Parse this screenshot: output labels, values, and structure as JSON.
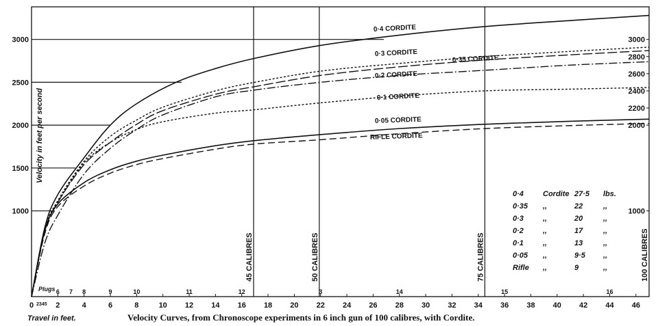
{
  "chart_data": {
    "type": "line",
    "title": "Velocity Curves, from Chronoscope experiments in 6 inch gun of 100 calibres, with Cordite.",
    "xlabel": "Travel in feet.",
    "ylabel": "Velocity in feet per second",
    "xlim": [
      0,
      47
    ],
    "ylim": [
      0,
      3380
    ],
    "x_ticks": [
      0,
      2,
      4,
      6,
      8,
      10,
      12,
      14,
      16,
      18,
      20,
      22,
      24,
      26,
      28,
      30,
      32,
      34,
      36,
      38,
      40,
      42,
      44,
      46
    ],
    "x_tick_labels": [
      "0",
      "2",
      "4",
      "6",
      "8",
      "10",
      "12",
      "14",
      "16",
      "18",
      "20",
      "22",
      "24",
      "26",
      "28",
      "30",
      "32",
      "34",
      "36",
      "38",
      "40",
      "42",
      "44",
      "46"
    ],
    "x_minor_label": "2345",
    "y_ticks_left": [
      1000,
      1500,
      2000,
      2500,
      3000
    ],
    "y_ticks_left_labels": [
      "1000",
      "1500",
      "2000",
      "2500",
      "3000"
    ],
    "y_ticks_right": [
      1000,
      2000,
      2200,
      2400,
      2600,
      2800,
      3000
    ],
    "y_ticks_right_labels": [
      "1000",
      "2000",
      "2200",
      "2400",
      "2600",
      "2800",
      "3000"
    ],
    "plugs_label": "Plugs",
    "plug_marks": [
      {
        "label": "6",
        "x": 2
      },
      {
        "label": "7",
        "x": 3
      },
      {
        "label": "8",
        "x": 4
      },
      {
        "label": "9",
        "x": 6
      },
      {
        "label": "10",
        "x": 8
      },
      {
        "label": "11",
        "x": 12
      },
      {
        "label": "12",
        "x": 16
      },
      {
        "label": "3",
        "x": 22
      },
      {
        "label": "14",
        "x": 28
      },
      {
        "label": "15",
        "x": 36
      },
      {
        "label": "16",
        "x": 44
      }
    ],
    "calibre_lines": [
      {
        "label": "45 CALIBRES",
        "x": 16.9
      },
      {
        "label": "50 CALIBRES",
        "x": 21.9
      },
      {
        "label": "75 CALIBRES",
        "x": 34.5
      },
      {
        "label": "100 CALIBRES",
        "x": 47
      }
    ],
    "series": [
      {
        "name": "0·4 CORDITE",
        "style": "solid",
        "x": [
          0,
          1,
          2,
          4,
          6,
          8,
          11,
          14,
          17,
          22,
          28,
          34.5,
          41,
          47
        ],
        "values": [
          0,
          800,
          1190,
          1620,
          2000,
          2250,
          2500,
          2660,
          2780,
          2930,
          3050,
          3150,
          3220,
          3280
        ]
      },
      {
        "name": "0·3 CORDITE",
        "style": "dot",
        "x": [
          0,
          1,
          2,
          4,
          6,
          8,
          10,
          14,
          17,
          22,
          28,
          34.5,
          41,
          47
        ],
        "values": [
          0,
          780,
          1120,
          1580,
          1870,
          2060,
          2210,
          2400,
          2500,
          2630,
          2720,
          2800,
          2860,
          2910
        ]
      },
      {
        "name": "0·35 CORDITE",
        "style": "longdash",
        "x": [
          0,
          1,
          2,
          4,
          6,
          8,
          10,
          14,
          17,
          22,
          28,
          34.5,
          41,
          47
        ],
        "values": [
          0,
          760,
          1100,
          1540,
          1800,
          2010,
          2170,
          2360,
          2450,
          2580,
          2680,
          2760,
          2820,
          2870
        ]
      },
      {
        "name": "0·2 CORDITE",
        "style": "dashdot",
        "x": [
          0,
          1,
          2,
          4,
          6,
          8,
          10,
          14,
          17,
          22,
          28,
          34.5,
          41,
          47
        ],
        "values": [
          0,
          620,
          950,
          1430,
          1730,
          1950,
          2120,
          2330,
          2410,
          2500,
          2580,
          2640,
          2700,
          2740
        ]
      },
      {
        "name": "0·1 CORDITE",
        "style": "dot",
        "x": [
          0,
          1,
          2,
          4,
          6,
          8,
          10,
          14,
          17,
          22,
          28,
          34.5,
          41,
          47
        ],
        "values": [
          0,
          770,
          1100,
          1560,
          1800,
          1950,
          2040,
          2140,
          2180,
          2260,
          2340,
          2400,
          2420,
          2440
        ]
      },
      {
        "name": "0·05 CORDITE",
        "style": "solid",
        "x": [
          0,
          1,
          2,
          4,
          6,
          8,
          10,
          14,
          17,
          22,
          28,
          34.5,
          41,
          47
        ],
        "values": [
          0,
          760,
          1080,
          1330,
          1480,
          1580,
          1650,
          1760,
          1820,
          1890,
          1960,
          2010,
          2045,
          2070
        ]
      },
      {
        "name": "RIFLE CORDITE",
        "style": "dash",
        "x": [
          0,
          1,
          2,
          4,
          6,
          8,
          10,
          14,
          17,
          22,
          28,
          34.5,
          41,
          47
        ],
        "values": [
          0,
          730,
          1050,
          1290,
          1440,
          1540,
          1610,
          1720,
          1780,
          1830,
          1900,
          1960,
          1995,
          2020
        ]
      }
    ],
    "legend_table": [
      [
        "0·4",
        "Cordite",
        "27·5",
        "lbs."
      ],
      [
        "0·35",
        ",,",
        "22",
        ",,"
      ],
      [
        "0·3",
        ",,",
        "20",
        ",,"
      ],
      [
        "0·2",
        ",,",
        "17",
        ",,"
      ],
      [
        "0·1",
        ",,",
        "13",
        ",,"
      ],
      [
        "0·05",
        ",,",
        "9·5",
        ",,"
      ],
      [
        "Rifle",
        ",,",
        "9",
        ",,"
      ]
    ]
  }
}
